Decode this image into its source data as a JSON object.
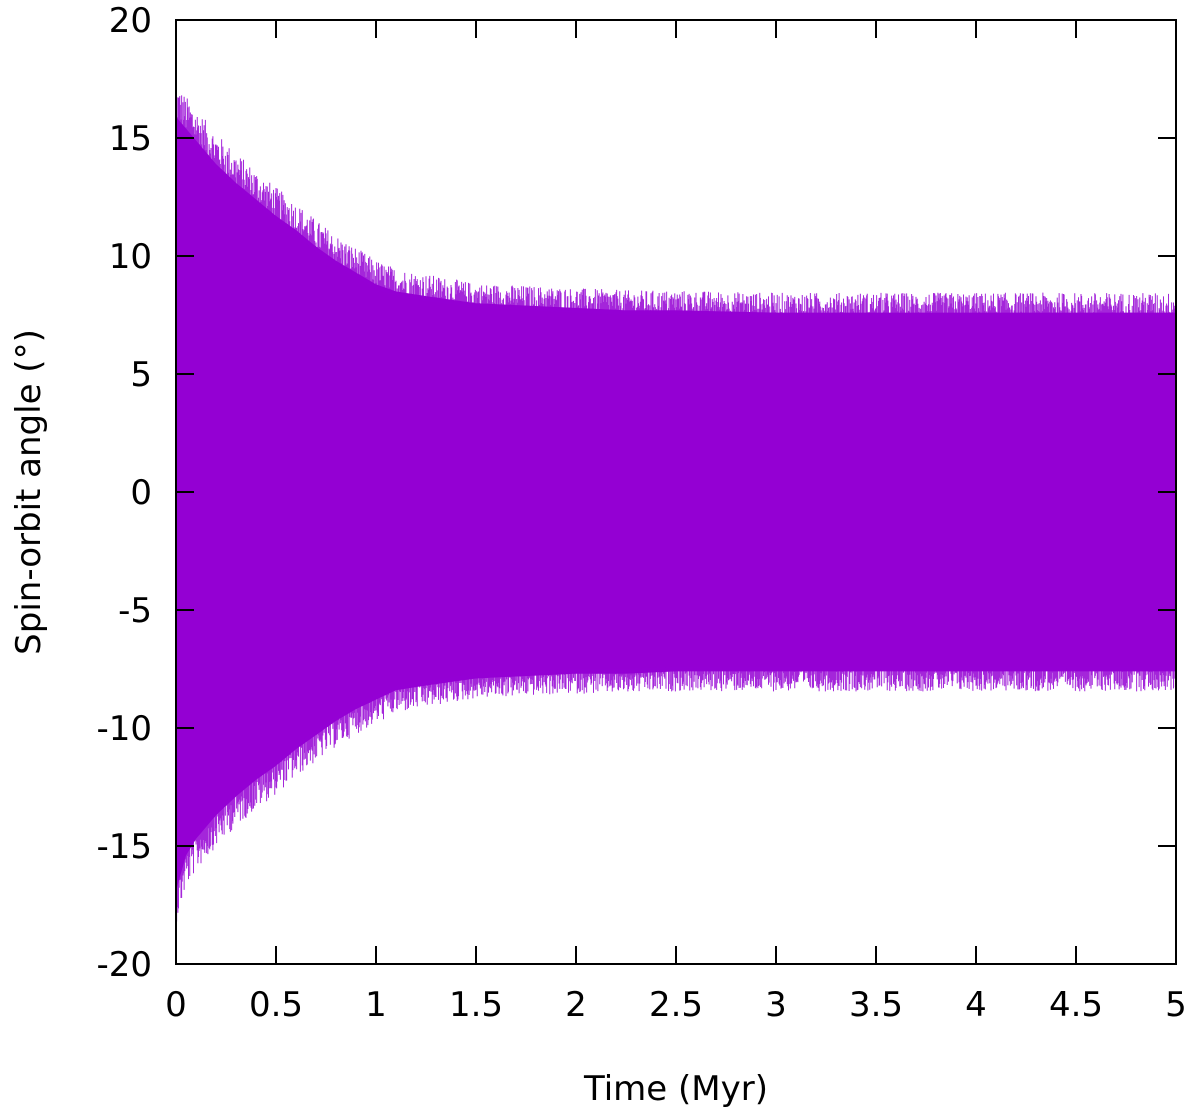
{
  "chart_data": {
    "type": "area",
    "xlabel": "Time (Myr)",
    "ylabel": "Spin-orbit angle (°)",
    "xlim": [
      0,
      5
    ],
    "ylim": [
      -20,
      20
    ],
    "x_ticks": [
      "0",
      "0.5",
      "1",
      "1.5",
      "2",
      "2.5",
      "3",
      "3.5",
      "4",
      "4.5",
      "5"
    ],
    "y_ticks": [
      "20",
      "15",
      "10",
      "5",
      "0",
      "-5",
      "-10",
      "-15",
      "-20"
    ],
    "grid": false,
    "legend": "none",
    "series": [
      {
        "color": "#9400d3",
        "envelope": {
          "x": [
            0,
            0.05,
            0.1,
            0.2,
            0.3,
            0.4,
            0.5,
            0.6,
            0.7,
            0.8,
            0.9,
            1.0,
            1.1,
            1.25,
            1.5,
            1.75,
            2.0,
            2.25,
            2.5,
            3.0,
            3.5,
            4.0,
            4.5,
            5.0
          ],
          "upper": [
            16.5,
            16.0,
            15.5,
            14.5,
            13.7,
            13.0,
            12.3,
            11.7,
            11.0,
            10.4,
            9.9,
            9.4,
            9.1,
            8.9,
            8.6,
            8.5,
            8.4,
            8.3,
            8.3,
            8.2,
            8.2,
            8.2,
            8.2,
            8.2
          ],
          "lower": [
            -17.5,
            -16.0,
            -15.3,
            -14.3,
            -13.5,
            -12.8,
            -12.2,
            -11.5,
            -10.9,
            -10.3,
            -9.8,
            -9.4,
            -9.0,
            -8.8,
            -8.5,
            -8.4,
            -8.3,
            -8.3,
            -8.2,
            -8.2,
            -8.2,
            -8.2,
            -8.2,
            -8.2
          ]
        }
      }
    ]
  }
}
